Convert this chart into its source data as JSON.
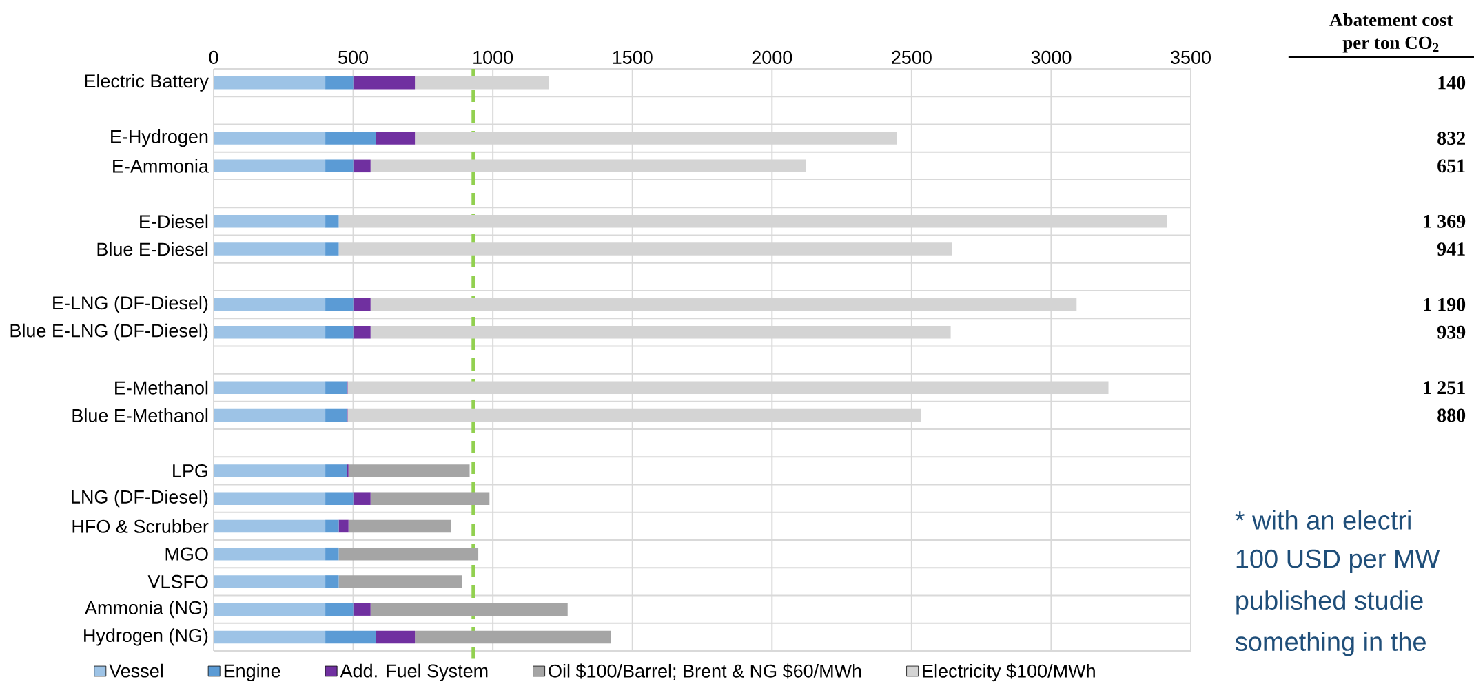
{
  "chart_data": {
    "type": "bar",
    "orientation": "horizontal",
    "stacked": true,
    "categories": [
      "Electric Battery",
      null,
      "E-Hydrogen",
      "E-Ammonia",
      null,
      "E-Diesel",
      "Blue E-Diesel",
      null,
      "E-LNG (DF-Diesel)",
      "Blue E-LNG (DF-Diesel)",
      null,
      "E-Methanol",
      "Blue E-Methanol",
      null,
      "LPG",
      "LNG (DF-Diesel)",
      "HFO & Scrubber",
      "MGO",
      "VLSFO",
      "Ammonia (NG)",
      "Hydrogen (NG)"
    ],
    "series": [
      {
        "name": "Vessel",
        "color": "#9dc3e6",
        "values": [
          400,
          null,
          400,
          400,
          null,
          400,
          400,
          null,
          400,
          400,
          null,
          400,
          400,
          null,
          400,
          400,
          400,
          400,
          400,
          400,
          400
        ]
      },
      {
        "name": "Engine",
        "color": "#5b9bd5",
        "values": [
          100,
          null,
          181,
          100,
          null,
          48,
          48,
          null,
          100,
          100,
          null,
          77,
          77,
          null,
          77,
          100,
          48,
          48,
          48,
          100,
          181
        ]
      },
      {
        "name": "Add. Fuel System",
        "color": "#7030a0",
        "values": [
          221,
          null,
          140,
          62,
          null,
          null,
          null,
          null,
          62,
          62,
          null,
          3,
          3,
          null,
          6,
          62,
          35,
          null,
          null,
          62,
          140
        ]
      },
      {
        "name": "Oil $100/Barrel; Brent & NG $60/MWh",
        "color": "#a5a5a5",
        "values": [
          null,
          null,
          null,
          null,
          null,
          null,
          null,
          null,
          null,
          null,
          null,
          null,
          null,
          null,
          434,
          426,
          367,
          500,
          441,
          706,
          703
        ]
      },
      {
        "name": "Electricity $100/MWh",
        "color": "#d4d4d4",
        "values": [
          480,
          null,
          1726,
          1559,
          null,
          2967,
          2196,
          null,
          2529,
          2078,
          null,
          2725,
          2053,
          null,
          null,
          null,
          null,
          null,
          null,
          null,
          null
        ]
      }
    ],
    "xlim": [
      0,
      3500
    ],
    "xticks": [
      0,
      500,
      1000,
      1500,
      2000,
      2500,
      3000,
      3500
    ],
    "grid": true,
    "legend": "bottom",
    "ref_lines": [
      {
        "axis": "x",
        "value": 930,
        "color": "#92d050",
        "line_style": "dashed"
      }
    ],
    "annotations": [
      "Abatement cost per ton CO$_{2}$",
      "140",
      "832",
      "651",
      "1 369",
      "941",
      "1 190",
      "939",
      "1 251",
      "880",
      "* with an electri",
      "100 USD per MW",
      "published studie",
      "something in the"
    ]
  }
}
